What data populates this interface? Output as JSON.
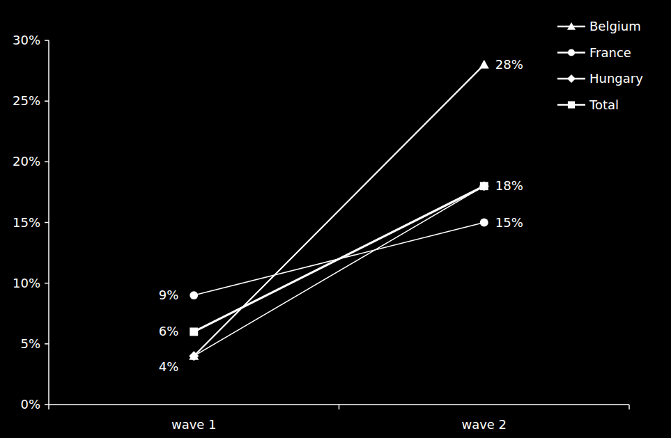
{
  "chart_data": {
    "type": "line",
    "categories": [
      "wave 1",
      "wave 2"
    ],
    "series": [
      {
        "name": "Belgium",
        "color": "#ffffff",
        "marker": "triangle",
        "line_style": "solid",
        "values": [
          4,
          28
        ],
        "value_labels": [
          "4%",
          "28%"
        ]
      },
      {
        "name": "France",
        "color": "#ffffff",
        "marker": "circle",
        "line_style": "solid",
        "values": [
          9,
          15
        ],
        "value_labels": [
          "9%",
          "15%"
        ]
      },
      {
        "name": "Hungary",
        "color": "#ffffff",
        "marker": "diamond",
        "line_style": "solid",
        "values": [
          4,
          18
        ],
        "value_labels": [
          null,
          null
        ]
      },
      {
        "name": "Total",
        "color": "#ffffff",
        "marker": "square",
        "line_style": "solid",
        "values": [
          6,
          18
        ],
        "value_labels": [
          "6%",
          "18%"
        ]
      }
    ],
    "ylim": [
      0,
      30
    ],
    "yticks": [
      {
        "value": 0,
        "label": "0%"
      },
      {
        "value": 5,
        "label": "5%"
      },
      {
        "value": 10,
        "label": "10%"
      },
      {
        "value": 15,
        "label": "15%"
      },
      {
        "value": 20,
        "label": "20%"
      },
      {
        "value": 25,
        "label": "25%"
      },
      {
        "value": 30,
        "label": "30%"
      }
    ],
    "grid": false,
    "legend": "top-right",
    "data_labels": true
  }
}
